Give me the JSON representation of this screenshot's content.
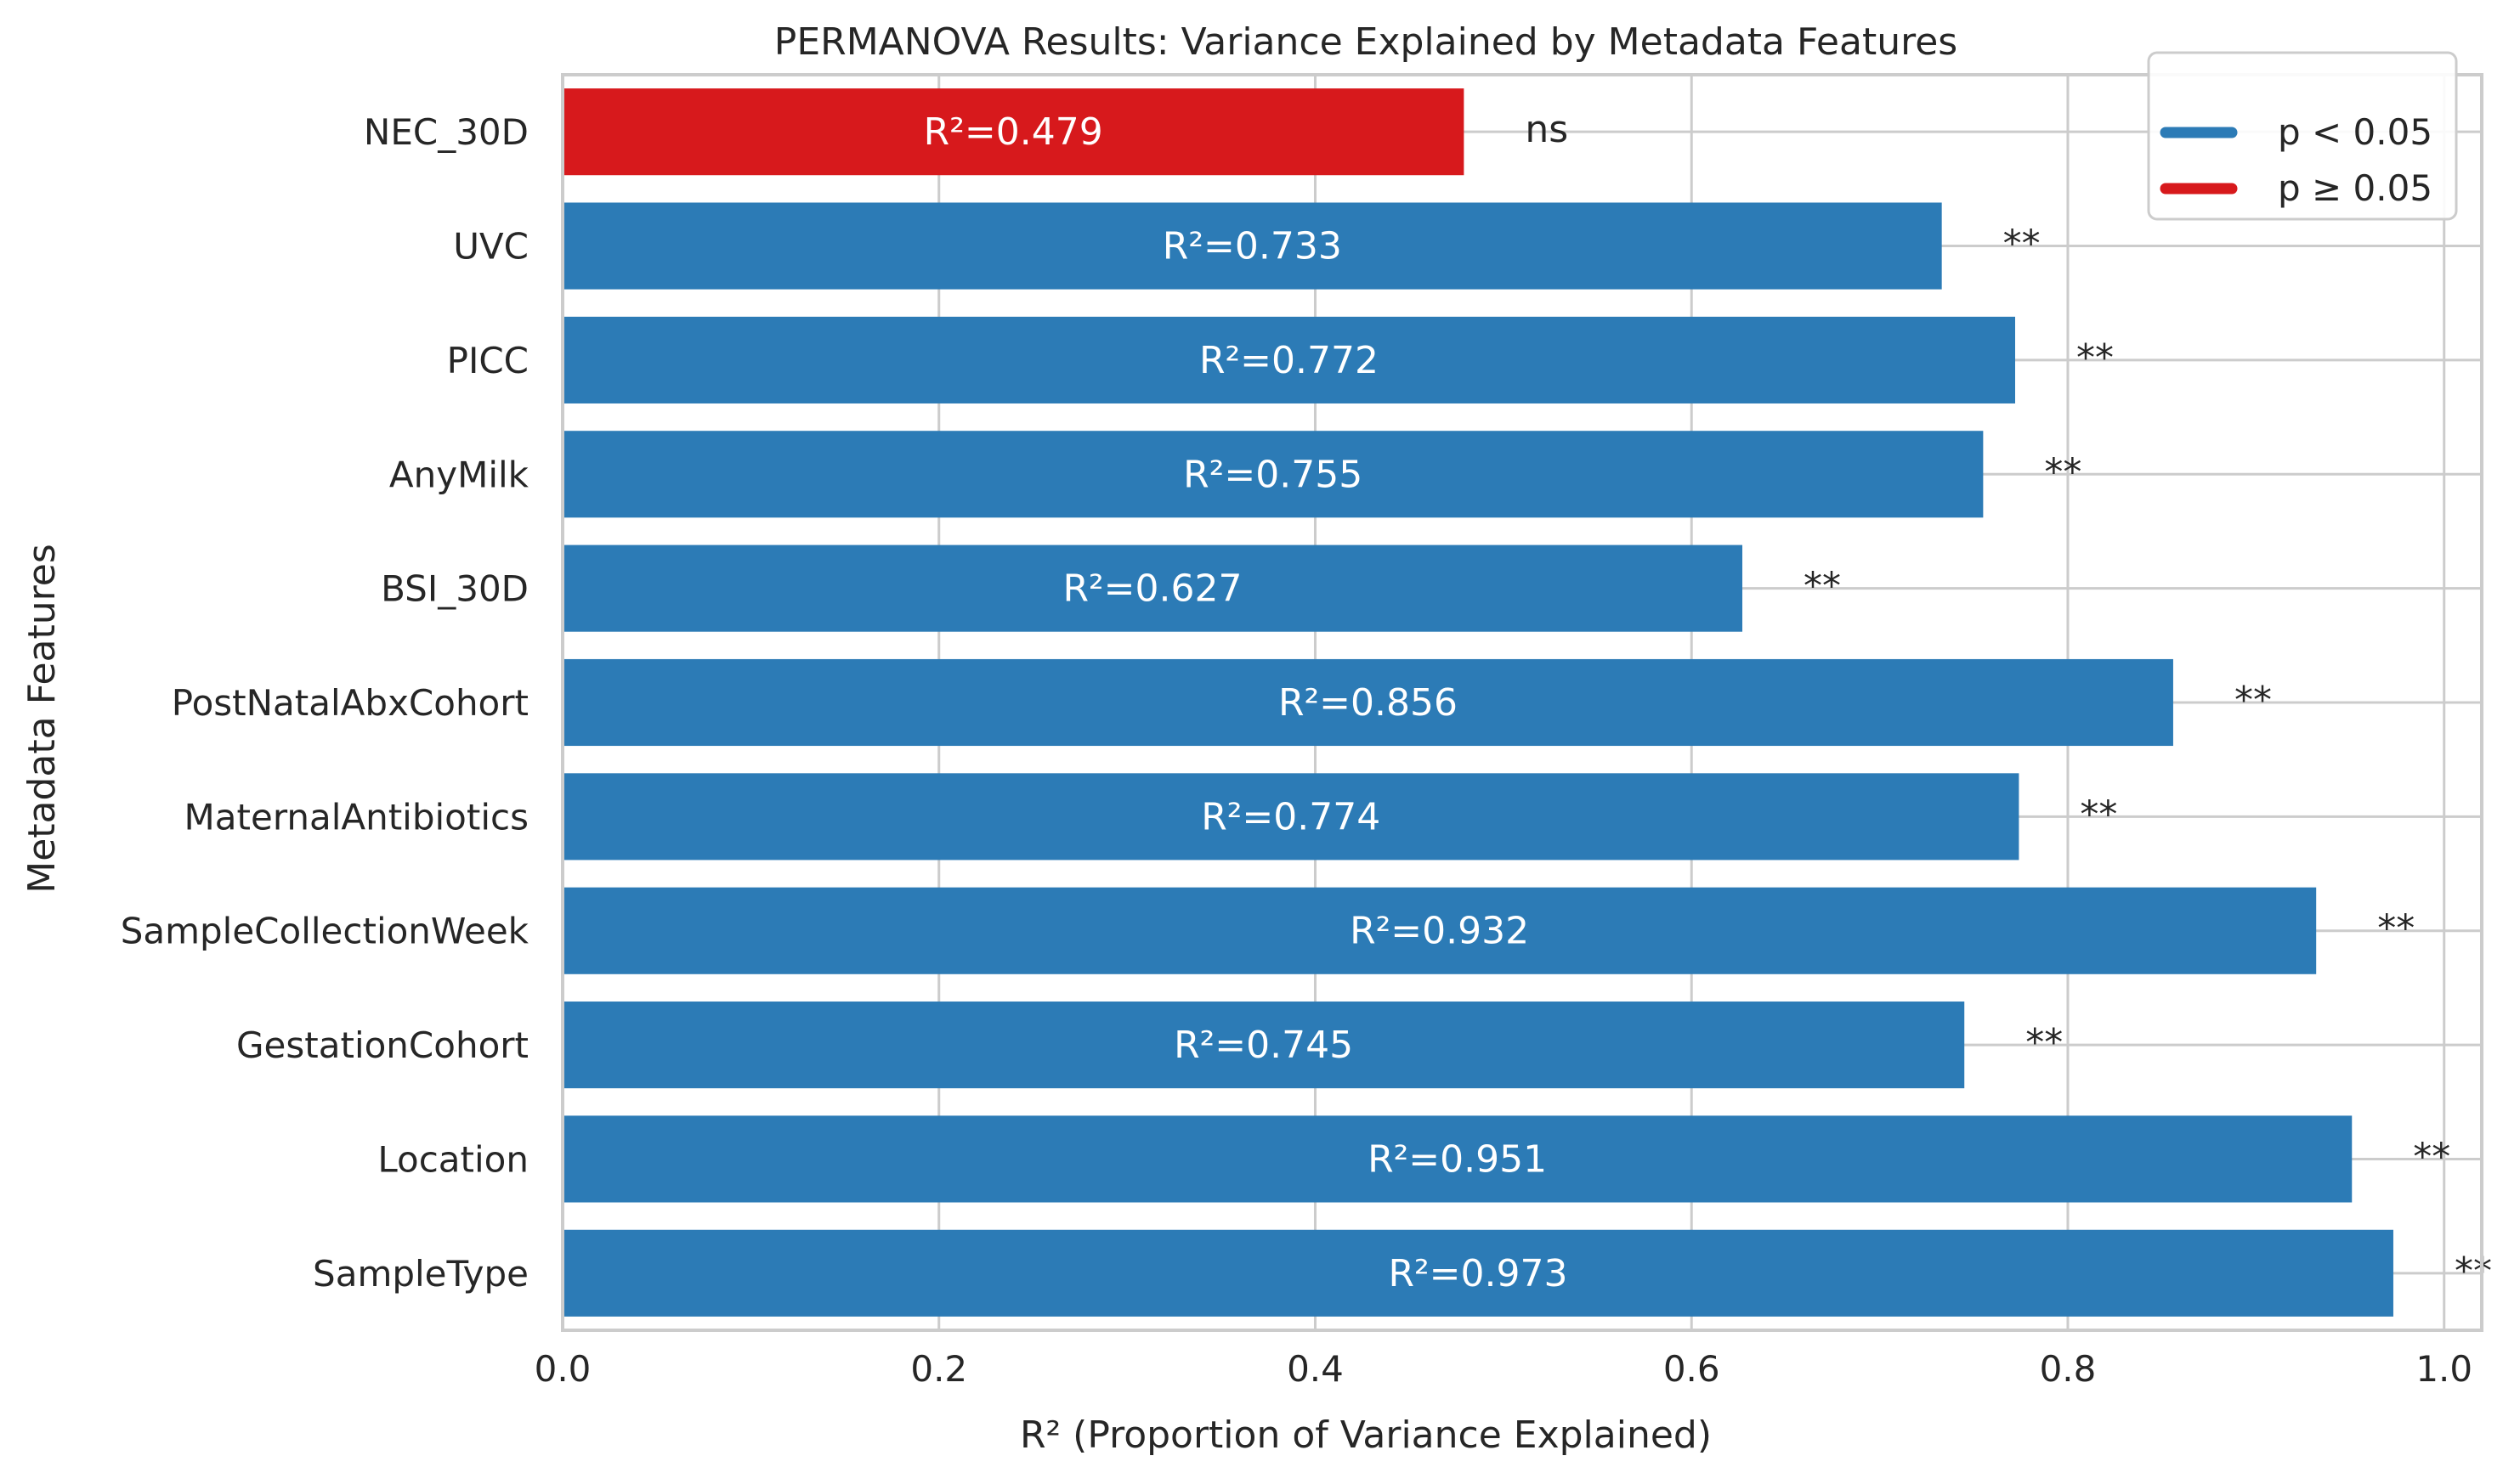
{
  "chart_data": {
    "type": "bar",
    "orientation": "horizontal",
    "title": "PERMANOVA Results: Variance Explained by Metadata Features",
    "xlabel": "R² (Proportion of Variance Explained)",
    "ylabel": "Metadata Features",
    "xlim": [
      0.0,
      1.02
    ],
    "xticks": [
      0.0,
      0.2,
      0.4,
      0.6,
      0.8,
      1.0
    ],
    "xtick_labels": [
      "0.0",
      "0.2",
      "0.4",
      "0.6",
      "0.8",
      "1.0"
    ],
    "grid": true,
    "legend_position": "top-right",
    "legend": [
      {
        "label": "p < 0.05",
        "color": "#2c7bb6"
      },
      {
        "label": "p ≥ 0.05",
        "color": "#d7191c"
      }
    ],
    "categories": [
      "NEC_30D",
      "UVC",
      "PICC",
      "AnyMilk",
      "BSI_30D",
      "PostNatalAbxCohort",
      "MaternalAntibiotics",
      "SampleCollectionWeek",
      "GestationCohort",
      "Location",
      "SampleType"
    ],
    "values": [
      0.479,
      0.733,
      0.772,
      0.755,
      0.627,
      0.856,
      0.774,
      0.932,
      0.745,
      0.951,
      0.973
    ],
    "bar_labels": [
      "R²=0.479",
      "R²=0.733",
      "R²=0.772",
      "R²=0.755",
      "R²=0.627",
      "R²=0.856",
      "R²=0.774",
      "R²=0.932",
      "R²=0.745",
      "R²=0.951",
      "R²=0.973"
    ],
    "significance": [
      "ns",
      "**",
      "**",
      "**",
      "**",
      "**",
      "**",
      "**",
      "**",
      "**",
      "**"
    ],
    "significant": [
      false,
      true,
      true,
      true,
      true,
      true,
      true,
      true,
      true,
      true,
      true
    ]
  }
}
